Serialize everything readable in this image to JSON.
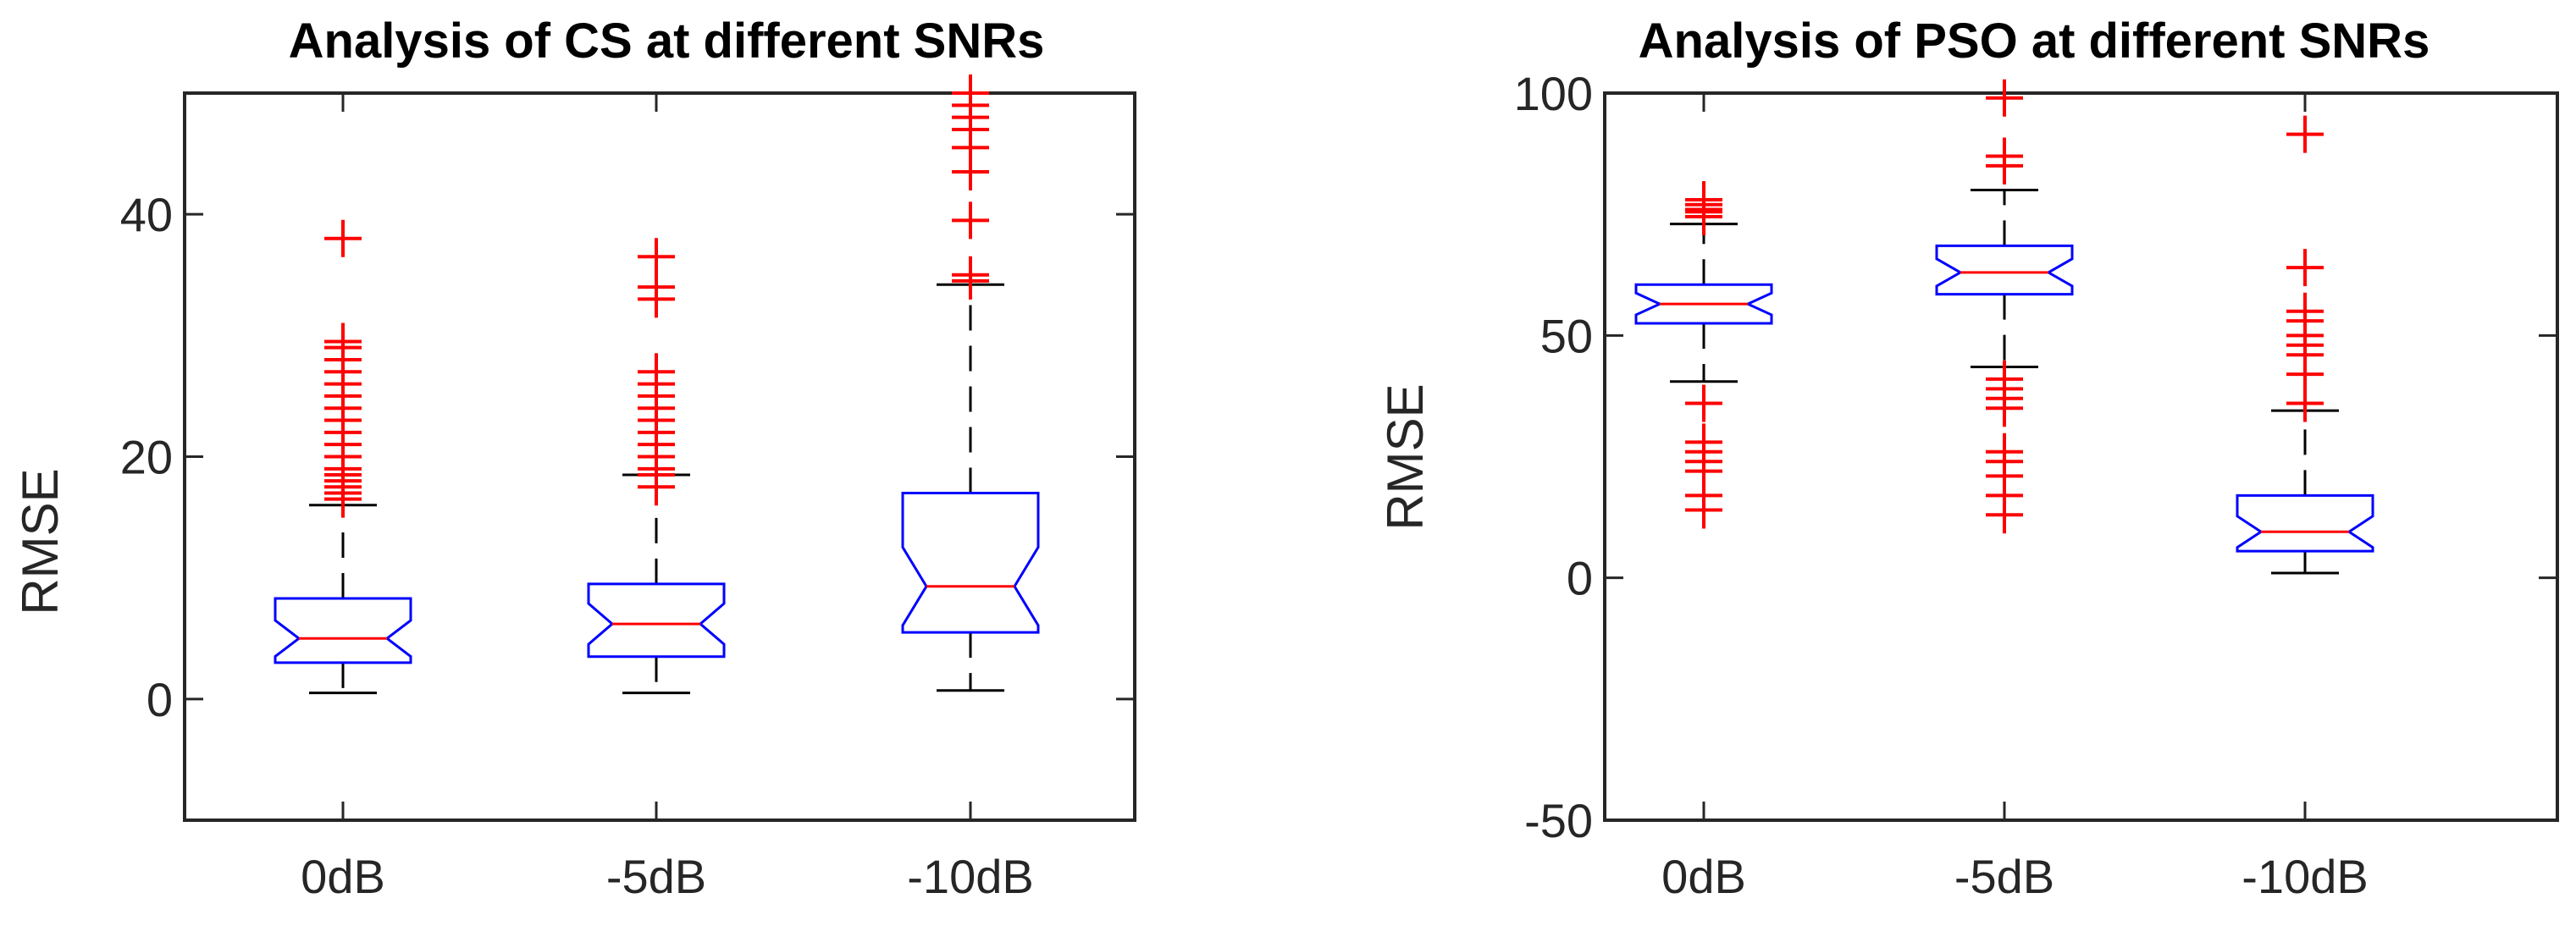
{
  "chart_data": [
    {
      "type": "box",
      "title": "Analysis of CS at different SNRs",
      "xlabel": "",
      "ylabel": "RMSE",
      "ylim": [
        -10,
        50
      ],
      "yticks": [
        0,
        20,
        40
      ],
      "ytick_labels": [
        "0",
        "20",
        "40"
      ],
      "categories": [
        "0dB",
        "-5dB",
        "-10dB"
      ],
      "notched": true,
      "boxes": [
        {
          "category": "0dB",
          "whisker_low": 0.5,
          "q1": 3,
          "median": 5,
          "q3": 8.3,
          "whisker_high": 16,
          "outliers": [
            16.5,
            17,
            17.5,
            18,
            18.5,
            19,
            20,
            21,
            22,
            23,
            24,
            25,
            26,
            27,
            28,
            29,
            29.5,
            38
          ]
        },
        {
          "category": "-5dB",
          "whisker_low": 0.5,
          "q1": 3.5,
          "median": 6.2,
          "q3": 9.5,
          "whisker_high": 18.5,
          "outliers": [
            17.5,
            18.5,
            19,
            20,
            21,
            22,
            23,
            24,
            25,
            26,
            27,
            33,
            34,
            36.5
          ]
        },
        {
          "category": "-10dB",
          "whisker_low": 0.7,
          "q1": 5.5,
          "median": 9.3,
          "q3": 17,
          "whisker_high": 34.2,
          "outliers": [
            34.5,
            35,
            39.5,
            43.5,
            45.5,
            47,
            48,
            49,
            50
          ]
        }
      ],
      "colors": {
        "box": "#0000ff",
        "median": "#ff0000",
        "whisker": "#000000",
        "outlier": "#ff0000"
      }
    },
    {
      "type": "box",
      "title": "Analysis of PSO at different SNRs",
      "xlabel": "",
      "ylabel": "RMSE",
      "ylim": [
        -50,
        100
      ],
      "yticks": [
        -50,
        0,
        50,
        100
      ],
      "ytick_labels": [
        "-50",
        "0",
        "50",
        "100"
      ],
      "categories": [
        "0dB",
        "-5dB",
        "-10dB"
      ],
      "notched": true,
      "boxes": [
        {
          "category": "0dB",
          "whisker_low": 40.5,
          "q1": 52.5,
          "median": 56.5,
          "q3": 60.5,
          "whisker_high": 73,
          "outliers": [
            14,
            17,
            22,
            24,
            26,
            28,
            36,
            74.5,
            75.5,
            76,
            77,
            78
          ]
        },
        {
          "category": "-5dB",
          "whisker_low": 43.5,
          "q1": 58.5,
          "median": 63,
          "q3": 68.5,
          "whisker_high": 80,
          "outliers": [
            13,
            17,
            21,
            24,
            26,
            35,
            37,
            39,
            41,
            85,
            87,
            99
          ]
        },
        {
          "category": "-10dB",
          "whisker_low": 1,
          "q1": 5.5,
          "median": 9.5,
          "q3": 17,
          "whisker_high": 34.5,
          "outliers": [
            36,
            42,
            46,
            48,
            50,
            53,
            55,
            64,
            91.5
          ]
        }
      ],
      "colors": {
        "box": "#0000ff",
        "median": "#ff0000",
        "whisker": "#000000",
        "outlier": "#ff0000"
      }
    }
  ]
}
